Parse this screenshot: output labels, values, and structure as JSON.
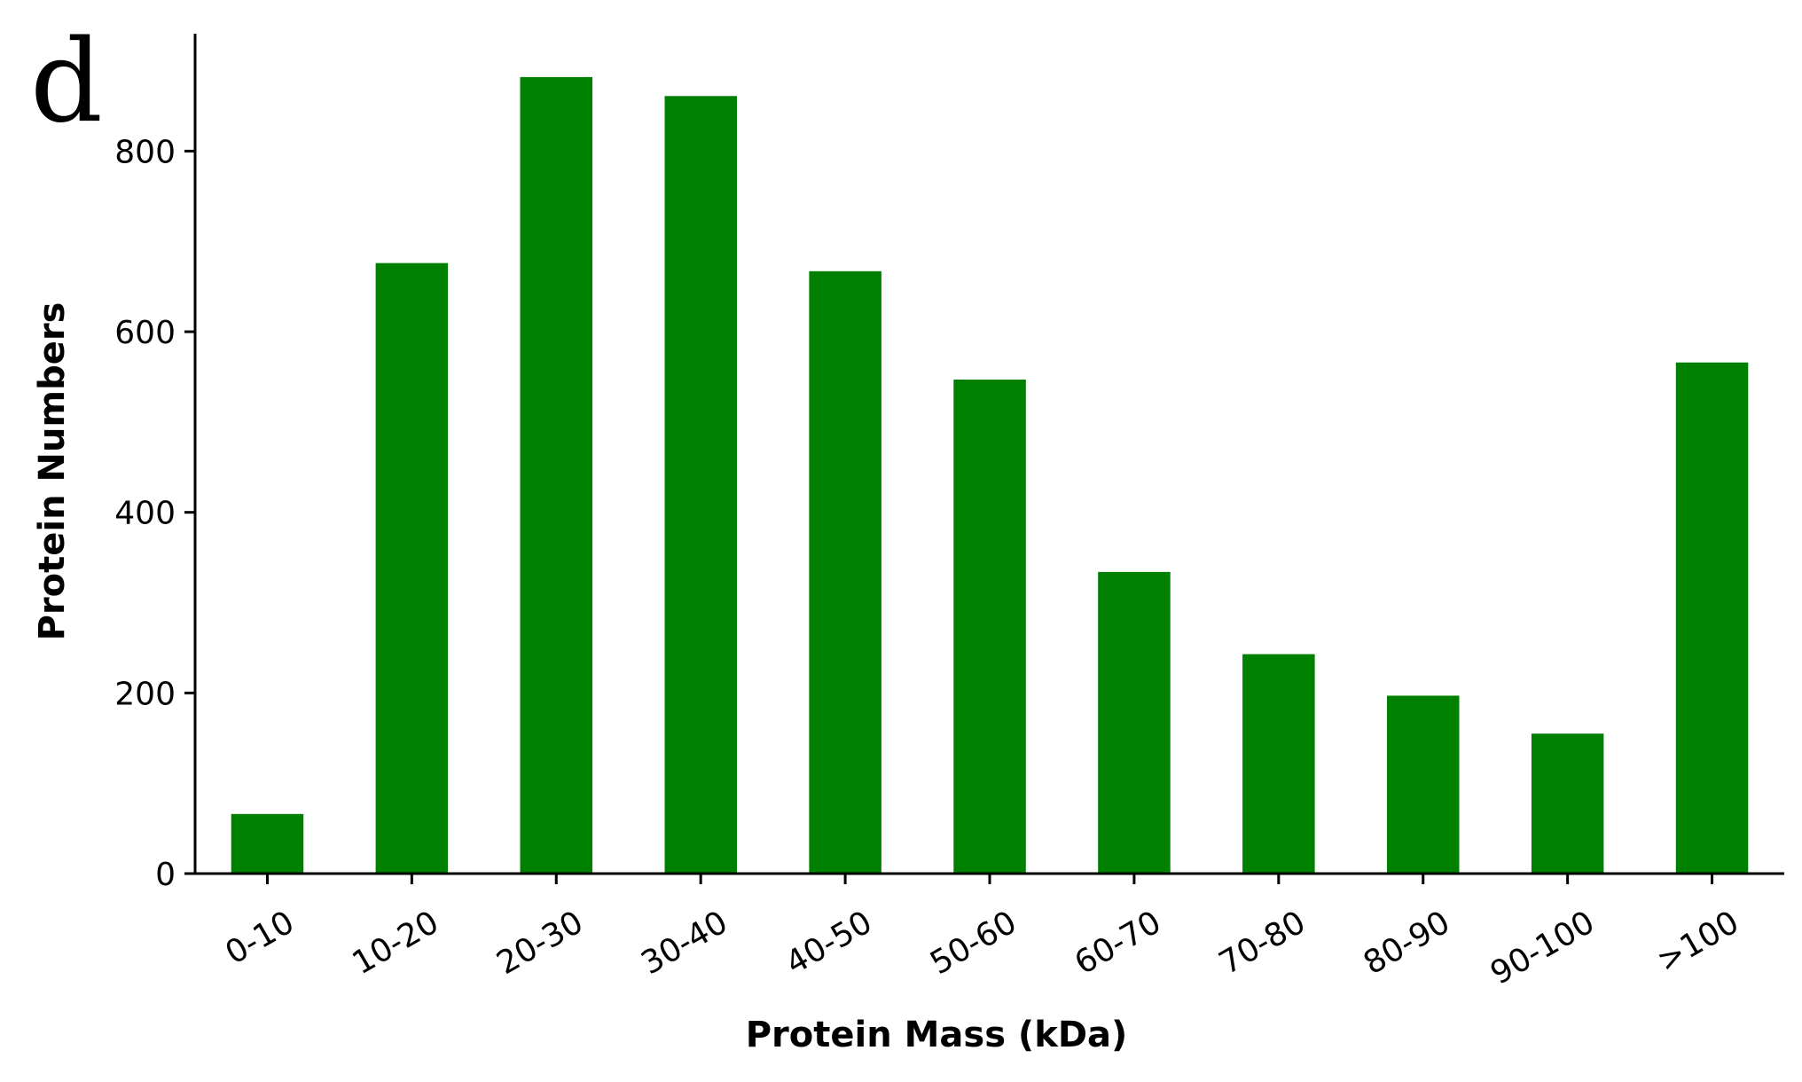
{
  "panel_label": "d",
  "chart_data": {
    "type": "bar",
    "categories": [
      "0-10",
      "10-20",
      "20-30",
      "30-40",
      "40-50",
      "50-60",
      "60-70",
      "70-80",
      "80-90",
      "90-100",
      ">100"
    ],
    "values": [
      66,
      676,
      882,
      861,
      667,
      547,
      334,
      243,
      197,
      155,
      566
    ],
    "xlabel": "Protein Mass (kDa)",
    "ylabel": "Protein Numbers",
    "ylim": [
      0,
      930
    ],
    "yticks": [
      0,
      200,
      400,
      600,
      800
    ],
    "bar_color": "#008000",
    "grid": false,
    "legend": "none"
  }
}
